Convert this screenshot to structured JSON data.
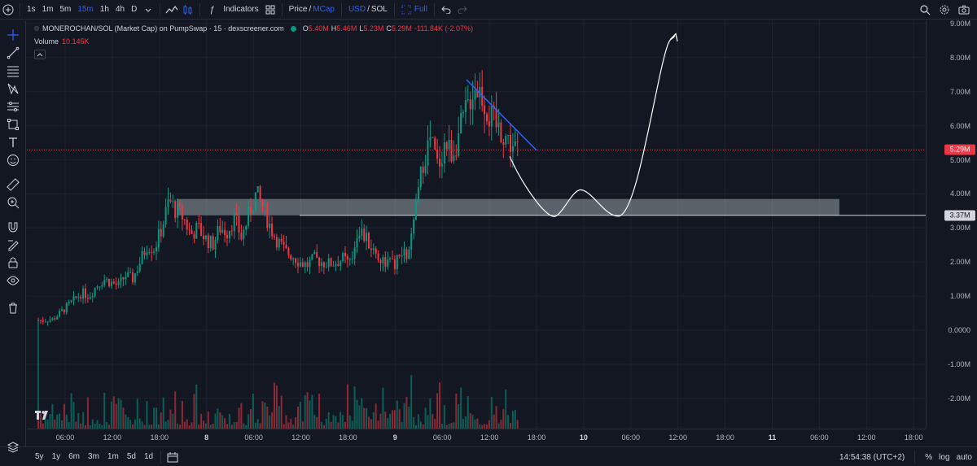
{
  "toolbar": {
    "intervals": [
      "1s",
      "1m",
      "5m",
      "15m",
      "1h",
      "4h",
      "D"
    ],
    "active_interval": "15m",
    "indicators_label": "Indicators",
    "price_label": "Price",
    "mcap_label": "MCap",
    "usd_label": "USD",
    "sol_label": "SOL",
    "full_label": "Full",
    "sep_slash": "/"
  },
  "legend": {
    "symbol": "MONEROCHAN/SOL (Market Cap) on PumpSwap · 15 · dexscreener.com",
    "o_key": "O",
    "o_val": "5.40M",
    "h_key": "H",
    "h_val": "5.46M",
    "l_key": "L",
    "l_val": "5.23M",
    "c_key": "C",
    "c_val": "5.29M",
    "change": "-111.84K (-2.07%)",
    "volume_label": "Volume",
    "volume_val": "10.145K",
    "status_color": "#089981"
  },
  "colors": {
    "up": "#089981",
    "down": "#f23645",
    "background": "#131722",
    "trendline": "#2962ff",
    "zone": "#b2bec3"
  },
  "price_axis": {
    "ticks": [
      "9.00M",
      "8.00M",
      "7.00M",
      "6.00M",
      "5.00M",
      "4.00M",
      "3.00M",
      "2.00M",
      "1.00M",
      "0.0000",
      "-1.00M",
      "-2.00M"
    ],
    "current_label": "5.29M",
    "level_label": "3.37M"
  },
  "time_axis": {
    "ticks": [
      "06:00",
      "12:00",
      "18:00",
      "8",
      "06:00",
      "12:00",
      "18:00",
      "9",
      "06:00",
      "12:00",
      "18:00",
      "10",
      "06:00",
      "12:00",
      "18:00",
      "11",
      "06:00",
      "12:00",
      "18:00"
    ],
    "bold": [
      false,
      false,
      false,
      true,
      false,
      false,
      false,
      true,
      false,
      false,
      false,
      true,
      false,
      false,
      false,
      true,
      false,
      false,
      false
    ]
  },
  "chart_data": {
    "type": "candlestick",
    "interval": "15m",
    "x_start": "7 03:45",
    "y_unit": "Market cap (SOL)",
    "ylim": [
      -2.8,
      9.1
    ],
    "close_series": [
      0.3,
      0.28,
      0.32,
      0.5,
      0.7,
      0.9,
      1.1,
      1.0,
      1.3,
      1.5,
      1.4,
      1.3,
      1.6,
      1.5,
      2.0,
      2.5,
      2.4,
      3.0,
      3.8,
      3.5,
      3.3,
      2.8,
      3.0,
      2.7,
      2.5,
      3.0,
      2.9,
      3.3,
      2.7,
      3.4,
      4.0,
      3.6,
      3.0,
      2.6,
      2.3,
      2.2,
      2.0,
      1.9,
      2.1,
      2.0,
      1.95,
      2.0,
      2.1,
      1.9,
      3.0,
      2.7,
      2.4,
      2.1,
      2.0,
      1.9,
      2.2,
      2.2,
      3.5,
      5.0,
      5.6,
      4.8,
      5.5,
      5.2,
      5.8,
      6.5,
      7.2,
      7.0,
      6.3,
      6.0,
      5.8,
      5.5,
      5.29
    ],
    "current": 5.29,
    "horizontal_level": 3.37,
    "zone": [
      3.37,
      3.85
    ],
    "trendline": [
      [
        7.35,
        "9 08:30"
      ],
      [
        5.28,
        "9 17:30"
      ]
    ],
    "projection": "drawn path: dip to 3.37M, bounce to 4.1M, retest 3.37M, rise to ~8.6M"
  },
  "bottom": {
    "ranges": [
      "5y",
      "1y",
      "6m",
      "3m",
      "1m",
      "5d",
      "1d"
    ],
    "clock": "14:54:38 (UTC+2)",
    "pct": "%",
    "log": "log",
    "auto": "auto"
  }
}
